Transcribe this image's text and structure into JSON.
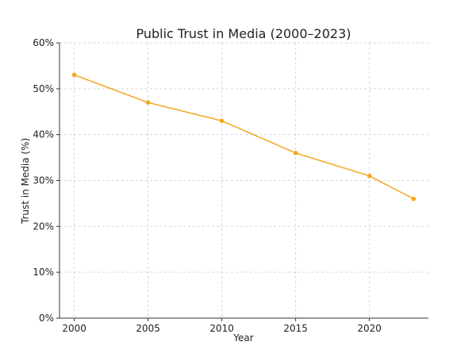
{
  "chart_data": {
    "type": "line",
    "title": "Public Trust in Media (2000–2023)",
    "xlabel": "Year",
    "ylabel": "Trust in Media (%)",
    "x": [
      2000,
      2005,
      2010,
      2015,
      2020,
      2023
    ],
    "series": [
      {
        "values": [
          53,
          47,
          43,
          36,
          31,
          26
        ],
        "color": "#f5a623"
      }
    ],
    "xlim": [
      1999,
      2024
    ],
    "ylim": [
      0,
      60
    ],
    "x_ticks": [
      2000,
      2005,
      2010,
      2015,
      2020
    ],
    "x_tick_labels": [
      "2000",
      "2005",
      "2010",
      "2015",
      "2020"
    ],
    "y_ticks": [
      0,
      10,
      20,
      30,
      40,
      50,
      60
    ],
    "y_tick_labels": [
      "0%",
      "10%",
      "20%",
      "30%",
      "40%",
      "50%",
      "60%"
    ],
    "grid": true,
    "markers": true
  }
}
